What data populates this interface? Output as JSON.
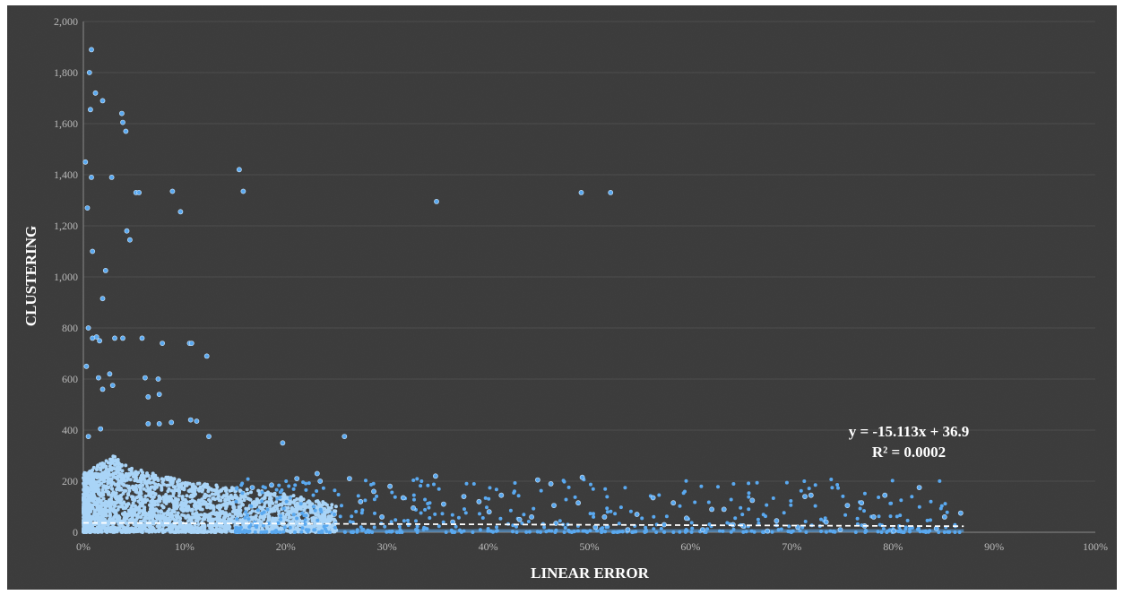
{
  "chart_data": {
    "type": "scatter",
    "xlabel": "LINEAR ERROR",
    "ylabel": "CLUSTERING",
    "xlim": [
      0,
      1
    ],
    "ylim": [
      0,
      2000
    ],
    "x_ticks": [
      "0%",
      "10%",
      "20%",
      "30%",
      "40%",
      "50%",
      "60%",
      "70%",
      "80%",
      "90%",
      "100%"
    ],
    "y_ticks": [
      "0",
      "200",
      "400",
      "600",
      "800",
      "1,000",
      "1,200",
      "1,400",
      "1,600",
      "1,800",
      "2,000"
    ],
    "grid": "horizontal",
    "point_color": "#5aa9f0",
    "dense_color": "#a9d4f7",
    "trendline": {
      "equation": "y = -15.113x + 36.9",
      "r_squared": "R² = 0.0002",
      "slope": -15.113,
      "intercept": 36.9,
      "style": "dashed",
      "color": "#ffffff",
      "x_range": [
        0,
        0.87
      ]
    },
    "dense_region": {
      "description": "thousands of points between x 0–0.25, y 0–230",
      "x_range": [
        0,
        0.25
      ],
      "y_max_curve": [
        [
          0,
          230
        ],
        [
          0.03,
          300
        ],
        [
          0.05,
          250
        ],
        [
          0.1,
          200
        ],
        [
          0.15,
          175
        ],
        [
          0.2,
          150
        ],
        [
          0.25,
          110
        ]
      ]
    },
    "series": [
      {
        "points": [
          [
            0.008,
            1890
          ],
          [
            0.006,
            1800
          ],
          [
            0.007,
            1655
          ],
          [
            0.012,
            1720
          ],
          [
            0.019,
            1690
          ],
          [
            0.038,
            1640
          ],
          [
            0.039,
            1605
          ],
          [
            0.042,
            1570
          ],
          [
            0.002,
            1450
          ],
          [
            0.154,
            1420
          ],
          [
            0.008,
            1390
          ],
          [
            0.028,
            1390
          ],
          [
            0.052,
            1330
          ],
          [
            0.055,
            1330
          ],
          [
            0.088,
            1335
          ],
          [
            0.158,
            1335
          ],
          [
            0.492,
            1330
          ],
          [
            0.521,
            1330
          ],
          [
            0.349,
            1295
          ],
          [
            0.004,
            1270
          ],
          [
            0.096,
            1255
          ],
          [
            0.043,
            1180
          ],
          [
            0.046,
            1145
          ],
          [
            0.009,
            1100
          ],
          [
            0.022,
            1025
          ],
          [
            0.019,
            915
          ],
          [
            0.005,
            800
          ],
          [
            0.009,
            760
          ],
          [
            0.013,
            765
          ],
          [
            0.016,
            750
          ],
          [
            0.031,
            760
          ],
          [
            0.039,
            760
          ],
          [
            0.058,
            760
          ],
          [
            0.078,
            740
          ],
          [
            0.105,
            740
          ],
          [
            0.107,
            740
          ],
          [
            0.122,
            690
          ],
          [
            0.003,
            650
          ],
          [
            0.015,
            605
          ],
          [
            0.026,
            620
          ],
          [
            0.061,
            605
          ],
          [
            0.074,
            600
          ],
          [
            0.019,
            560
          ],
          [
            0.029,
            575
          ],
          [
            0.064,
            530
          ],
          [
            0.075,
            540
          ],
          [
            0.005,
            375
          ],
          [
            0.017,
            405
          ],
          [
            0.064,
            425
          ],
          [
            0.075,
            425
          ],
          [
            0.087,
            430
          ],
          [
            0.106,
            440
          ],
          [
            0.112,
            435
          ],
          [
            0.124,
            375
          ],
          [
            0.197,
            350
          ],
          [
            0.258,
            375
          ],
          [
            0.348,
            220
          ],
          [
            0.493,
            215
          ],
          [
            0.449,
            205
          ],
          [
            0.462,
            190
          ],
          [
            0.413,
            145
          ],
          [
            0.376,
            140
          ],
          [
            0.391,
            120
          ],
          [
            0.465,
            105
          ],
          [
            0.489,
            115
          ],
          [
            0.563,
            135
          ],
          [
            0.583,
            115
          ],
          [
            0.621,
            90
          ],
          [
            0.633,
            90
          ],
          [
            0.661,
            125
          ],
          [
            0.713,
            140
          ],
          [
            0.719,
            145
          ],
          [
            0.755,
            105
          ],
          [
            0.769,
            115
          ],
          [
            0.792,
            145
          ],
          [
            0.826,
            175
          ],
          [
            0.867,
            75
          ],
          [
            0.781,
            60
          ],
          [
            0.851,
            60
          ],
          [
            0.734,
            40
          ],
          [
            0.685,
            45
          ],
          [
            0.642,
            30
          ],
          [
            0.596,
            55
          ],
          [
            0.547,
            70
          ],
          [
            0.515,
            60
          ],
          [
            0.431,
            50
          ],
          [
            0.326,
            95
          ],
          [
            0.303,
            180
          ],
          [
            0.287,
            160
          ],
          [
            0.274,
            120
          ],
          [
            0.231,
            230
          ],
          [
            0.211,
            210
          ],
          [
            0.186,
            185
          ],
          [
            0.167,
            175
          ],
          [
            0.234,
            200
          ],
          [
            0.263,
            210
          ],
          [
            0.316,
            135
          ],
          [
            0.356,
            110
          ],
          [
            0.401,
            80
          ],
          [
            0.443,
            60
          ],
          [
            0.506,
            20
          ],
          [
            0.538,
            10
          ],
          [
            0.612,
            10
          ],
          [
            0.676,
            5
          ],
          [
            0.748,
            10
          ],
          [
            0.801,
            5
          ],
          [
            0.843,
            15
          ],
          [
            0.772,
            25
          ],
          [
            0.706,
            20
          ],
          [
            0.652,
            25
          ],
          [
            0.574,
            30
          ],
          [
            0.467,
            35
          ],
          [
            0.365,
            40
          ],
          [
            0.295,
            60
          ],
          [
            0.248,
            70
          ]
        ]
      }
    ]
  }
}
